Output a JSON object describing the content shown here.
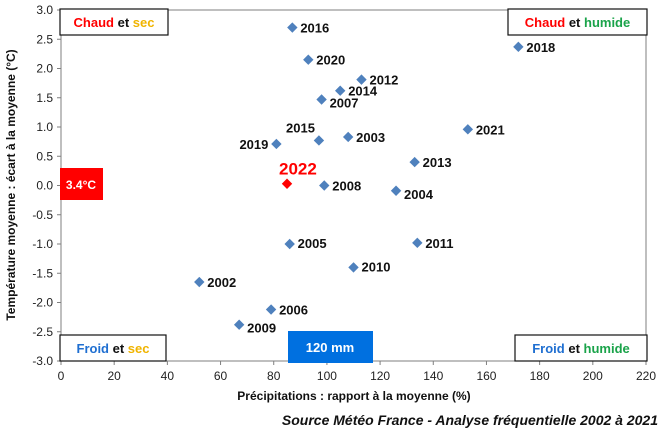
{
  "chart_data": {
    "type": "scatter",
    "xlabel": "Précipitations : rapport à la moyenne (%)",
    "ylabel": "Température moyenne : écart à la moyenne (°C)",
    "xlim": [
      0,
      220
    ],
    "ylim": [
      -3.0,
      3.0
    ],
    "x_ticks": [
      "0",
      "20",
      "40",
      "60",
      "80",
      "100",
      "120",
      "140",
      "160",
      "180",
      "200",
      "220"
    ],
    "y_ticks": [
      "3.0",
      "2.5",
      "2.0",
      "1.5",
      "1.0",
      "0.5",
      "0.0",
      "-0.5",
      "-1.0",
      "-1.5",
      "-2.0",
      "-2.5",
      "-3.0"
    ],
    "grid": true,
    "marker_color": "#4f81bd",
    "highlight_color": "#ff0000",
    "points": [
      {
        "label": "2016",
        "x": 87,
        "y": 2.7
      },
      {
        "label": "2018",
        "x": 172,
        "y": 2.37
      },
      {
        "label": "2020",
        "x": 93,
        "y": 2.15
      },
      {
        "label": "2012",
        "x": 113,
        "y": 1.81
      },
      {
        "label": "2014",
        "x": 105,
        "y": 1.62
      },
      {
        "label": "2007",
        "x": 98,
        "y": 1.47
      },
      {
        "label": "2021",
        "x": 153,
        "y": 0.96
      },
      {
        "label": "2015",
        "x": 97,
        "y": 0.77
      },
      {
        "label": "2003",
        "x": 108,
        "y": 0.83
      },
      {
        "label": "2019",
        "x": 81,
        "y": 0.71
      },
      {
        "label": "2013",
        "x": 133,
        "y": 0.4
      },
      {
        "label": "2008",
        "x": 99,
        "y": 0.0
      },
      {
        "label": "2004",
        "x": 126,
        "y": -0.09
      },
      {
        "label": "2005",
        "x": 86,
        "y": -1.0
      },
      {
        "label": "2011",
        "x": 134,
        "y": -0.98
      },
      {
        "label": "2010",
        "x": 110,
        "y": -1.4
      },
      {
        "label": "2002",
        "x": 52,
        "y": -1.65
      },
      {
        "label": "2006",
        "x": 79,
        "y": -2.12
      },
      {
        "label": "2009",
        "x": 67,
        "y": -2.38
      }
    ],
    "highlight": {
      "label": "2022",
      "x": 85,
      "y": 0.03
    },
    "annotations": {
      "temp_box": "3.4°C",
      "precip_box": "120 mm"
    },
    "quadrants": {
      "top_left": {
        "word1": "Chaud",
        "conj": "et",
        "word2": "sec"
      },
      "top_right": {
        "word1": "Chaud",
        "conj": "et",
        "word2": "humide"
      },
      "bottom_left": {
        "word1": "Froid",
        "conj": "et",
        "word2": "sec"
      },
      "bottom_right": {
        "word1": "Froid",
        "conj": "et",
        "word2": "humide"
      }
    },
    "colors": {
      "chaud": "#ff0000",
      "froid": "#1f6fd1",
      "sec": "#f0b400",
      "humide": "#1aa34a",
      "et": "#111111",
      "temp_box": "#ff0000",
      "precip_box": "#0070e0"
    },
    "source": "Source Météo France - Analyse fréquentielle 2002 à 2021"
  }
}
